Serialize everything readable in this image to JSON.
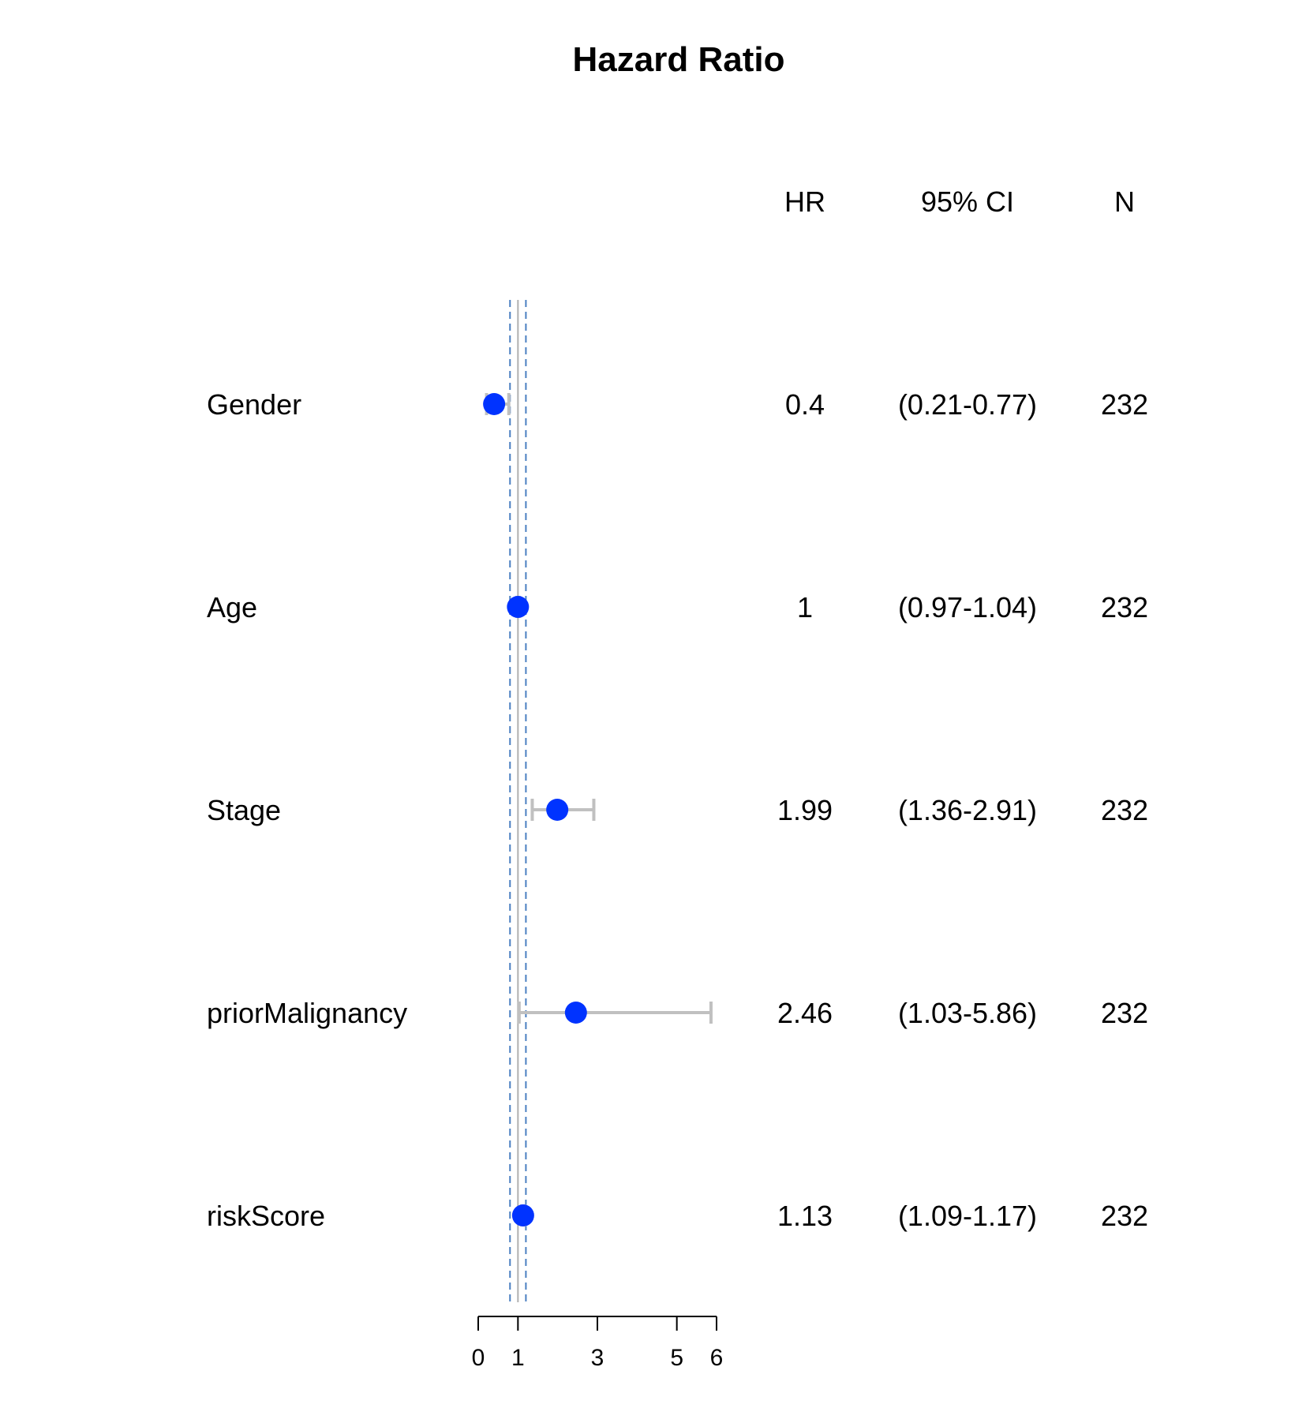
{
  "chart_data": {
    "type": "forest",
    "title": "Hazard Ratio",
    "columns": {
      "hr": "HR",
      "ci": "95% CI",
      "n": "N"
    },
    "rows": [
      {
        "label": "Gender",
        "hr": 0.4,
        "ci_low": 0.21,
        "ci_high": 0.77,
        "hr_text": "0.4",
        "ci_text": "(0.21-0.77)",
        "n_text": "232"
      },
      {
        "label": "Age",
        "hr": 1.0,
        "ci_low": 0.97,
        "ci_high": 1.04,
        "hr_text": "1",
        "ci_text": "(0.97-1.04)",
        "n_text": "232"
      },
      {
        "label": "Stage",
        "hr": 1.99,
        "ci_low": 1.36,
        "ci_high": 2.91,
        "hr_text": "1.99",
        "ci_text": "(1.36-2.91)",
        "n_text": "232"
      },
      {
        "label": "priorMalignancy",
        "hr": 2.46,
        "ci_low": 1.03,
        "ci_high": 5.86,
        "hr_text": "2.46",
        "ci_text": "(1.03-5.86)",
        "n_text": "232"
      },
      {
        "label": "riskScore",
        "hr": 1.13,
        "ci_low": 1.09,
        "ci_high": 1.17,
        "hr_text": "1.13",
        "ci_text": "(1.09-1.17)",
        "n_text": "232"
      }
    ],
    "x_axis": {
      "ticks": [
        0,
        1,
        3,
        5,
        6
      ],
      "tick_labels": [
        "0",
        "1",
        "3",
        "5",
        "6"
      ],
      "range": [
        0,
        6
      ]
    },
    "reference_line": 1,
    "dashed_lines": [
      0.8,
      1.2
    ],
    "colors": {
      "point": "#0033ff",
      "ci": "#c0c0c0",
      "reference": "#b0b0b0",
      "dashed": "#4a7fc1",
      "axis": "#000000"
    }
  }
}
